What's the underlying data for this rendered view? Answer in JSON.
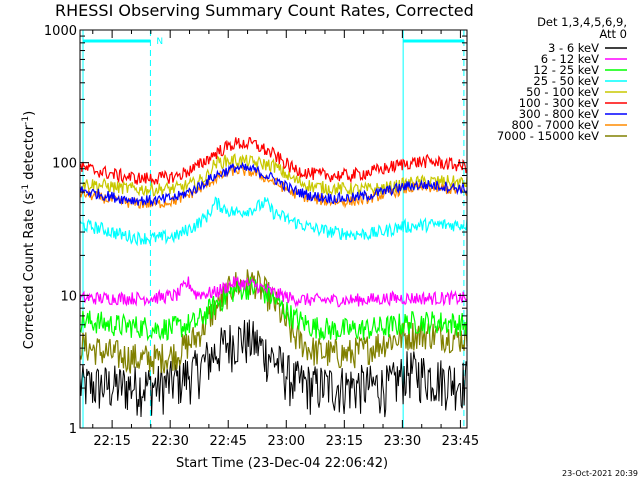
{
  "chart_data": {
    "type": "line",
    "title": "RHESSI Observing Summary Count Rates, Corrected",
    "xlabel": "Start Time (23-Dec-04 22:06:42)",
    "ylabel_main": "Corrected Count Rate (s",
    "ylabel_sup1": "-1",
    "ylabel_mid": " detector",
    "ylabel_sup2": "-1",
    "ylabel_end": ")",
    "yscale": "log",
    "ylim": [
      1,
      1000
    ],
    "xlim_minutes": [
      0,
      100
    ],
    "x_ticks": [
      {
        "label": "22:15",
        "minutes": 8.3
      },
      {
        "label": "22:30",
        "minutes": 23.3
      },
      {
        "label": "22:45",
        "minutes": 38.3
      },
      {
        "label": "23:00",
        "minutes": 53.3
      },
      {
        "label": "23:15",
        "minutes": 68.3
      },
      {
        "label": "23:30",
        "minutes": 83.3
      },
      {
        "label": "23:45",
        "minutes": 98.3
      }
    ],
    "y_ticks": [
      {
        "label": "1",
        "value": 1
      },
      {
        "label": "10",
        "value": 10
      },
      {
        "label": "100",
        "value": 100
      },
      {
        "label": "1000",
        "value": 1000
      }
    ],
    "legend_header": [
      "Det 1,3,4,5,6,9,",
      "Att 0"
    ],
    "series": [
      {
        "name": "3 - 6 keV",
        "color": "#000000",
        "x": [
          0,
          5,
          10,
          15,
          20,
          25,
          30,
          35,
          38,
          42,
          45,
          50,
          55,
          60,
          65,
          70,
          75,
          80,
          85,
          90,
          95,
          100
        ],
        "values": [
          2.0,
          2.0,
          2.0,
          2.0,
          2.0,
          2.2,
          2.6,
          3.6,
          4.2,
          4.6,
          4.3,
          3.2,
          2.2,
          2.0,
          2.0,
          2.0,
          2.0,
          2.0,
          2.6,
          2.4,
          2.2,
          2.2
        ]
      },
      {
        "name": "6 - 12 keV",
        "color": "#ff00ff",
        "x": [
          0,
          5,
          10,
          15,
          20,
          25,
          28,
          30,
          35,
          40,
          45,
          50,
          55,
          60,
          65,
          70,
          75,
          80,
          85,
          90,
          95,
          100
        ],
        "values": [
          9.5,
          9.5,
          9.5,
          9.5,
          9.6,
          10.0,
          12.5,
          10.2,
          10.5,
          12.5,
          12.0,
          10.5,
          9.4,
          9.2,
          9.2,
          9.2,
          9.3,
          9.5,
          9.5,
          9.5,
          9.5,
          9.5
        ]
      },
      {
        "name": "12 - 25 keV",
        "color": "#00ff00",
        "x": [
          0,
          5,
          10,
          15,
          20,
          25,
          30,
          35,
          40,
          45,
          50,
          55,
          60,
          65,
          70,
          75,
          80,
          85,
          90,
          95,
          100
        ],
        "values": [
          6.5,
          6.2,
          5.9,
          5.8,
          5.6,
          5.7,
          6.2,
          8.5,
          11.0,
          11.5,
          9.5,
          6.8,
          5.8,
          5.5,
          5.5,
          5.6,
          5.8,
          6.2,
          6.3,
          6.2,
          6.0
        ]
      },
      {
        "name": "25 - 50 keV",
        "color": "#00ffff",
        "x": [
          0,
          5,
          10,
          15,
          20,
          25,
          30,
          33,
          35,
          38,
          40,
          45,
          48,
          50,
          55,
          60,
          65,
          70,
          75,
          80,
          83,
          85,
          90,
          95,
          100
        ],
        "values": [
          34,
          32,
          29,
          27,
          27,
          28,
          34,
          40,
          50,
          44,
          42,
          45,
          50,
          42,
          36,
          32,
          30,
          29,
          29,
          31,
          33,
          33,
          34,
          34,
          34
        ]
      },
      {
        "name": "50 - 100 keV",
        "color": "#c8c800",
        "x": [
          0,
          5,
          10,
          15,
          20,
          25,
          30,
          33,
          35,
          40,
          45,
          50,
          55,
          60,
          65,
          70,
          75,
          80,
          85,
          90,
          95,
          100
        ],
        "values": [
          70,
          68,
          65,
          63,
          63,
          64,
          70,
          80,
          100,
          105,
          100,
          95,
          75,
          66,
          64,
          63,
          63,
          65,
          70,
          72,
          72,
          70
        ]
      },
      {
        "name": "100 - 300 keV",
        "color": "#ff0000",
        "x": [
          0,
          5,
          10,
          15,
          20,
          25,
          30,
          35,
          40,
          45,
          50,
          55,
          60,
          65,
          70,
          75,
          80,
          85,
          90,
          95,
          100
        ],
        "values": [
          92,
          86,
          80,
          76,
          76,
          79,
          92,
          118,
          140,
          138,
          115,
          90,
          82,
          80,
          80,
          85,
          92,
          100,
          102,
          98,
          93
        ]
      },
      {
        "name": "300 - 800 keV",
        "color": "#0000ff",
        "x": [
          0,
          5,
          10,
          15,
          20,
          25,
          30,
          35,
          40,
          45,
          50,
          55,
          60,
          65,
          70,
          75,
          80,
          85,
          90,
          95,
          100
        ],
        "values": [
          62,
          58,
          54,
          52,
          52,
          55,
          64,
          80,
          92,
          88,
          76,
          62,
          56,
          54,
          54,
          57,
          62,
          67,
          68,
          66,
          63
        ]
      },
      {
        "name": "800 - 7000 keV",
        "color": "#ff8c00",
        "x": [
          0,
          5,
          10,
          15,
          20,
          25,
          30,
          35,
          40,
          45,
          50,
          55,
          60,
          65,
          70,
          75,
          80,
          85,
          90,
          95,
          100
        ],
        "values": [
          59,
          55,
          51,
          49,
          49,
          52,
          61,
          76,
          88,
          84,
          72,
          59,
          53,
          51,
          51,
          54,
          59,
          64,
          65,
          63,
          60
        ]
      },
      {
        "name": "7000 - 15000 keV",
        "color": "#808000",
        "x": [
          0,
          5,
          10,
          15,
          20,
          25,
          30,
          35,
          40,
          45,
          50,
          55,
          60,
          65,
          70,
          75,
          80,
          85,
          90,
          95,
          100
        ],
        "values": [
          4.2,
          3.8,
          3.5,
          3.3,
          3.3,
          3.6,
          4.8,
          8.0,
          12.0,
          12.5,
          9.0,
          5.0,
          3.8,
          3.6,
          3.6,
          4.0,
          4.6,
          5.0,
          5.1,
          4.9,
          4.7
        ]
      }
    ],
    "annotations": [
      {
        "label": "N",
        "at_minutes": 18.2
      }
    ],
    "night_intervals_minutes": [
      [
        0,
        18.2
      ],
      [
        83.5,
        100
      ]
    ],
    "footer_stamp": "23-Oct-2021 20:39"
  }
}
